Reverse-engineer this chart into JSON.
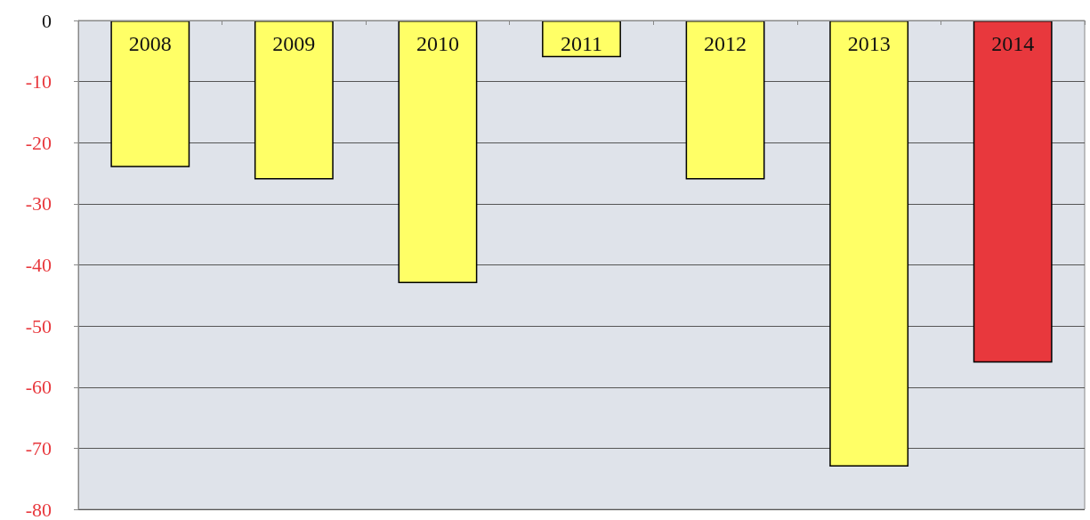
{
  "chart_data": {
    "type": "bar",
    "categories": [
      "2008",
      "2009",
      "2010",
      "2011",
      "2012",
      "2013",
      "2014"
    ],
    "values": [
      -24,
      -26,
      -43,
      -6,
      -26,
      -73,
      -56
    ],
    "colors": [
      "#ffff66",
      "#ffff66",
      "#ffff66",
      "#ffff66",
      "#ffff66",
      "#ffff66",
      "#e8383d"
    ],
    "ylim": [
      -80,
      0
    ],
    "yticks": [
      0,
      -10,
      -20,
      -30,
      -40,
      -50,
      -60,
      -70,
      -80
    ],
    "grid": "y"
  }
}
